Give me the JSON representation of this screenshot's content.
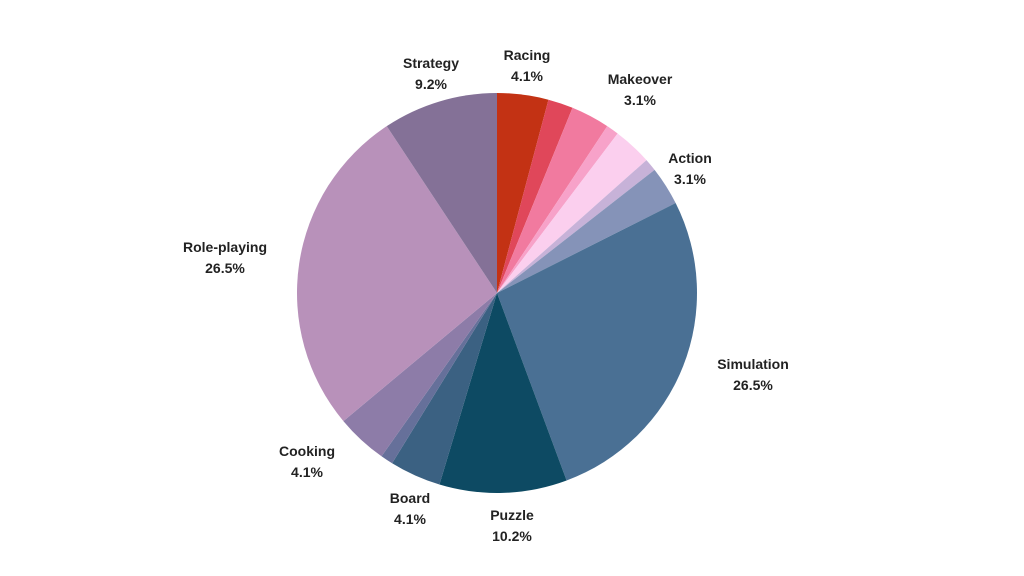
{
  "chart_data": {
    "type": "pie",
    "title": "",
    "start": "top",
    "direction": "clockwise",
    "slices": [
      {
        "label": "Racing",
        "value": 4.1,
        "display": "4.1%",
        "color": "#c33214"
      },
      {
        "label": "",
        "value": 2.0,
        "display": "",
        "color": "#e0475a"
      },
      {
        "label": "Makeover",
        "value": 3.1,
        "display": "3.1%",
        "color": "#f17a9f"
      },
      {
        "label": "",
        "value": 1.0,
        "display": "",
        "color": "#f7a2c9"
      },
      {
        "label": "",
        "value": 3.1,
        "display": "",
        "color": "#fbcfee"
      },
      {
        "label": "",
        "value": 1.0,
        "display": "",
        "color": "#c7b2d8"
      },
      {
        "label": "Action",
        "value": 3.1,
        "display": "3.1%",
        "color": "#8593b8"
      },
      {
        "label": "Simulation",
        "value": 26.5,
        "display": "26.5%",
        "color": "#4a7094"
      },
      {
        "label": "Puzzle",
        "value": 10.2,
        "display": "10.2%",
        "color": "#0d4a63"
      },
      {
        "label": "Board",
        "value": 4.1,
        "display": "4.1%",
        "color": "#3b6182"
      },
      {
        "label": "",
        "value": 1.0,
        "display": "",
        "color": "#66709a"
      },
      {
        "label": "Cooking",
        "value": 4.1,
        "display": "4.1%",
        "color": "#8d7ca8"
      },
      {
        "label": "Role-playing",
        "value": 26.5,
        "display": "26.5%",
        "color": "#b891ba"
      },
      {
        "label": "Strategy",
        "value": 9.2,
        "display": "9.2%",
        "color": "#847197"
      }
    ]
  }
}
